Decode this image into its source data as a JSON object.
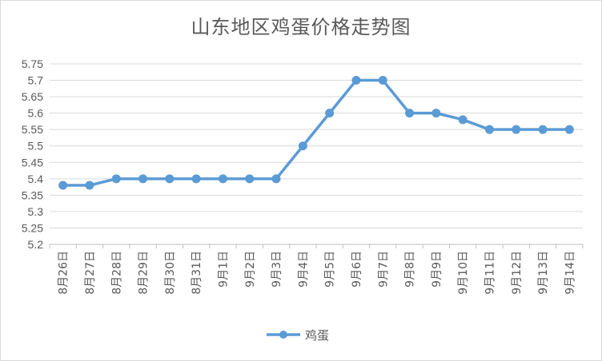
{
  "chart_data": {
    "type": "line",
    "title": "山东地区鸡蛋价格走势图",
    "xlabel": "",
    "ylabel": "",
    "categories": [
      "8月26日",
      "8月27日",
      "8月28日",
      "8月29日",
      "8月30日",
      "8月31日",
      "9月1日",
      "9月2日",
      "9月3日",
      "9月4日",
      "9月5日",
      "9月6日",
      "9月7日",
      "9月8日",
      "9月9日",
      "9月10日",
      "9月11日",
      "9月12日",
      "9月13日",
      "9月14日"
    ],
    "series": [
      {
        "name": "鸡蛋",
        "color": "#5b9bd5",
        "values": [
          5.38,
          5.38,
          5.4,
          5.4,
          5.4,
          5.4,
          5.4,
          5.4,
          5.4,
          5.5,
          5.6,
          5.7,
          5.7,
          5.6,
          5.6,
          5.58,
          5.55,
          5.55,
          5.55,
          5.55
        ]
      }
    ],
    "ylim": [
      5.2,
      5.75
    ],
    "yticks": [
      "5.2",
      "5.25",
      "5.3",
      "5.35",
      "5.4",
      "5.45",
      "5.5",
      "5.55",
      "5.6",
      "5.65",
      "5.7",
      "5.75"
    ],
    "grid": true,
    "legend": "bottom"
  }
}
